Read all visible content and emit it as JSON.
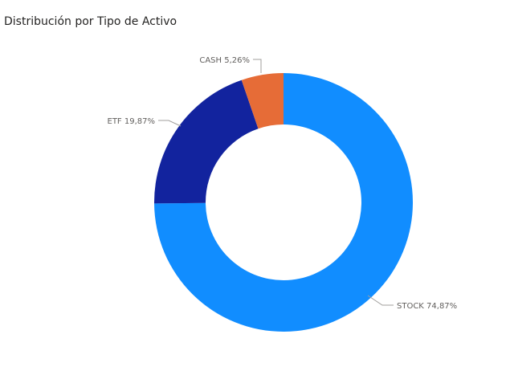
{
  "chart_data": {
    "type": "pie",
    "variant": "donut",
    "title": "Distribución por Tipo de Activo",
    "slices": [
      {
        "label": "STOCK",
        "value": 74.87,
        "display": "STOCK 74,87%",
        "color": "#118dff"
      },
      {
        "label": "ETF",
        "value": 19.87,
        "display": "ETF 19,87%",
        "color": "#12239e"
      },
      {
        "label": "CASH",
        "value": 5.26,
        "display": "CASH 5,26%",
        "color": "#e66c37"
      }
    ],
    "start": "12 o'clock",
    "direction": "clockwise",
    "legend": "none",
    "data_labels": "outside with leader lines"
  }
}
